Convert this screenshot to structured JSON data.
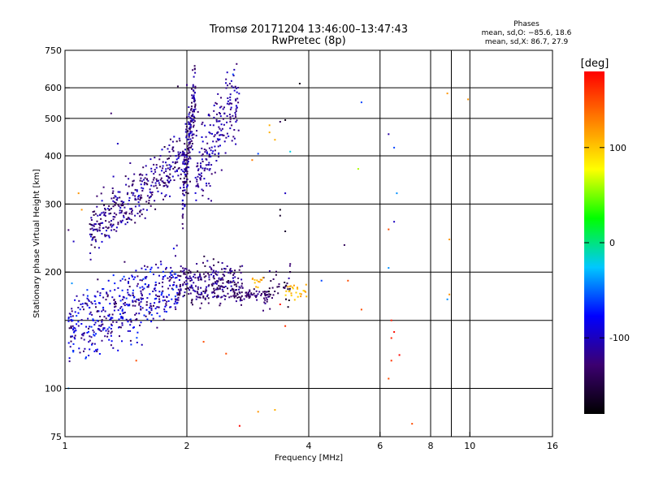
{
  "chart_data": {
    "type": "scatter",
    "title": "Tromsø 20171204 13:46:00–13:47:43",
    "subtitle": "RwPretec (8p)",
    "xlabel": "Frequency [MHz]",
    "ylabel": "Stationary phase Virtual Height [km]",
    "x_scale": "log",
    "y_scale": "log",
    "xlim": [
      1,
      16
    ],
    "ylim": [
      75,
      750
    ],
    "x_ticks": [
      1,
      2,
      4,
      6,
      8,
      10,
      16
    ],
    "x_minor_gridlines": [
      9
    ],
    "y_ticks": [
      75,
      100,
      200,
      300,
      400,
      500,
      600,
      750
    ],
    "y_minor_gridlines": [
      150
    ],
    "grid": true,
    "phase_box": {
      "title": "Phases",
      "line_o": "mean, sd,O: −85.6, 18.6",
      "line_x": "mean, sd,X: 86.7, 27.9"
    },
    "colorbar": {
      "label": "[deg]",
      "range": [
        -180,
        180
      ],
      "ticks": [
        100,
        0,
        -100
      ],
      "colors": [
        "#000000",
        "#3c0070",
        "#0000ff",
        "#00c8ff",
        "#00ff00",
        "#ffff00",
        "#ff8000",
        "#ff0000"
      ]
    },
    "groups": [
      {
        "kind": "band",
        "x_start": 1.15,
        "x_end": 2.0,
        "y_start": 255,
        "y_end": 400,
        "spread": 0.07,
        "count": 380,
        "phase": [
          -150,
          -90
        ]
      },
      {
        "kind": "band",
        "x_start": 1.95,
        "x_end": 2.1,
        "y_start": 320,
        "y_end": 600,
        "spread": 0.1,
        "count": 200,
        "phase": [
          -150,
          -90
        ]
      },
      {
        "kind": "band",
        "x_start": 2.1,
        "x_end": 2.7,
        "y_start": 360,
        "y_end": 580,
        "spread": 0.1,
        "count": 210,
        "phase": [
          -130,
          -90
        ]
      },
      {
        "kind": "band",
        "x_start": 1.02,
        "x_end": 1.9,
        "y_start": 140,
        "y_end": 185,
        "spread": 0.09,
        "count": 480,
        "phase": [
          -140,
          -60
        ]
      },
      {
        "kind": "band",
        "x_start": 1.9,
        "x_end": 2.75,
        "y_start": 185,
        "y_end": 188,
        "spread": 0.05,
        "count": 270,
        "phase": [
          -150,
          -100
        ]
      },
      {
        "kind": "band",
        "x_start": 2.6,
        "x_end": 3.2,
        "y_start": 175,
        "y_end": 175,
        "spread": 0.015,
        "count": 70,
        "phase": [
          -145,
          -115
        ]
      },
      {
        "kind": "band",
        "x_start": 3.05,
        "x_end": 3.6,
        "y_start": 175,
        "y_end": 185,
        "spread": 0.05,
        "count": 40,
        "phase": [
          -170,
          -110
        ]
      },
      {
        "kind": "band",
        "x_start": 3.5,
        "x_end": 3.95,
        "y_start": 178,
        "y_end": 178,
        "spread": 0.02,
        "count": 25,
        "phase": [
          90,
          120
        ]
      },
      {
        "kind": "band",
        "x_start": 2.9,
        "x_end": 3.1,
        "y_start": 185,
        "y_end": 190,
        "spread": 0.02,
        "count": 12,
        "phase": [
          100,
          125
        ]
      }
    ],
    "points": [
      {
        "x": 6.4,
        "y": 150,
        "phase": 170
      },
      {
        "x": 6.5,
        "y": 140,
        "phase": 175
      },
      {
        "x": 6.4,
        "y": 135,
        "phase": 165
      },
      {
        "x": 6.7,
        "y": 122,
        "phase": 178
      },
      {
        "x": 6.4,
        "y": 118,
        "phase": 160
      },
      {
        "x": 6.3,
        "y": 106,
        "phase": 150
      },
      {
        "x": 7.2,
        "y": 81,
        "phase": 150
      },
      {
        "x": 2.7,
        "y": 80,
        "phase": 178
      },
      {
        "x": 3.3,
        "y": 88,
        "phase": 110
      },
      {
        "x": 3.0,
        "y": 87,
        "phase": 120
      },
      {
        "x": 2.5,
        "y": 123,
        "phase": 150
      },
      {
        "x": 2.2,
        "y": 132,
        "phase": 150
      },
      {
        "x": 1.5,
        "y": 118,
        "phase": 150
      },
      {
        "x": 3.4,
        "y": 165,
        "phase": 175
      },
      {
        "x": 3.5,
        "y": 145,
        "phase": 160
      },
      {
        "x": 5.4,
        "y": 160,
        "phase": 150
      },
      {
        "x": 5.0,
        "y": 190,
        "phase": 150
      },
      {
        "x": 6.3,
        "y": 205,
        "phase": -40
      },
      {
        "x": 6.5,
        "y": 270,
        "phase": -100
      },
      {
        "x": 6.3,
        "y": 258,
        "phase": 150
      },
      {
        "x": 6.6,
        "y": 320,
        "phase": -40
      },
      {
        "x": 6.5,
        "y": 420,
        "phase": -60
      },
      {
        "x": 6.3,
        "y": 455,
        "phase": -110
      },
      {
        "x": 5.3,
        "y": 370,
        "phase": 60
      },
      {
        "x": 5.4,
        "y": 550,
        "phase": -60
      },
      {
        "x": 4.9,
        "y": 235,
        "phase": -140
      },
      {
        "x": 3.5,
        "y": 320,
        "phase": -100
      },
      {
        "x": 3.4,
        "y": 290,
        "phase": -170
      },
      {
        "x": 3.4,
        "y": 280,
        "phase": -160
      },
      {
        "x": 3.5,
        "y": 255,
        "phase": -160
      },
      {
        "x": 3.5,
        "y": 495,
        "phase": -170
      },
      {
        "x": 3.4,
        "y": 490,
        "phase": -140
      },
      {
        "x": 3.2,
        "y": 480,
        "phase": 110
      },
      {
        "x": 3.2,
        "y": 460,
        "phase": 110
      },
      {
        "x": 3.3,
        "y": 440,
        "phase": 110
      },
      {
        "x": 3.6,
        "y": 410,
        "phase": -20
      },
      {
        "x": 3.0,
        "y": 405,
        "phase": -60
      },
      {
        "x": 2.9,
        "y": 390,
        "phase": 130
      },
      {
        "x": 3.8,
        "y": 615,
        "phase": -170
      },
      {
        "x": 2.6,
        "y": 650,
        "phase": -60
      },
      {
        "x": 2.0,
        "y": 610,
        "phase": -120
      },
      {
        "x": 1.9,
        "y": 605,
        "phase": -150
      },
      {
        "x": 1.3,
        "y": 515,
        "phase": -130
      },
      {
        "x": 1.35,
        "y": 430,
        "phase": -100
      },
      {
        "x": 1.08,
        "y": 320,
        "phase": 120
      },
      {
        "x": 1.1,
        "y": 290,
        "phase": 120
      },
      {
        "x": 1.02,
        "y": 257,
        "phase": -130
      },
      {
        "x": 1.05,
        "y": 240,
        "phase": -100
      },
      {
        "x": 1.02,
        "y": 100,
        "phase": -40
      },
      {
        "x": 1.04,
        "y": 187,
        "phase": -40
      },
      {
        "x": 4.3,
        "y": 190,
        "phase": -60
      },
      {
        "x": 3.6,
        "y": 200,
        "phase": -150
      },
      {
        "x": 3.6,
        "y": 210,
        "phase": -130
      },
      {
        "x": 8.8,
        "y": 580,
        "phase": 120
      },
      {
        "x": 9.9,
        "y": 560,
        "phase": 120
      },
      {
        "x": 8.9,
        "y": 243,
        "phase": 120
      },
      {
        "x": 8.9,
        "y": 175,
        "phase": 120
      },
      {
        "x": 8.8,
        "y": 170,
        "phase": -40
      }
    ]
  }
}
